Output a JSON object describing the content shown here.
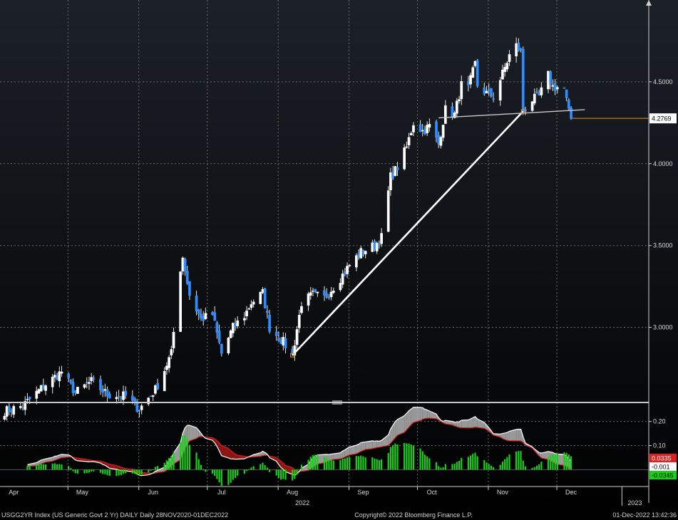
{
  "chart_data": [
    {
      "type": "candlestick",
      "title": "",
      "ylim": [
        2.55,
        5.0
      ],
      "yticks": [
        3.0,
        3.5,
        4.0,
        4.5
      ],
      "ytick_labels": [
        "3.0000",
        "3.5000",
        "4.0000",
        "4.5000"
      ],
      "last_value": 4.2769,
      "last_value_label": "4.2769",
      "x_range": [
        "2022-03-26",
        "2023-01-04"
      ],
      "close_keypoints": [
        [
          "2022-03-26",
          2.48
        ],
        [
          "2022-04-05",
          2.52
        ],
        [
          "2022-04-14",
          2.64
        ],
        [
          "2022-04-22",
          2.73
        ],
        [
          "2022-04-28",
          2.6
        ],
        [
          "2022-05-05",
          2.67
        ],
        [
          "2022-05-12",
          2.59
        ],
        [
          "2022-05-20",
          2.58
        ],
        [
          "2022-05-26",
          2.5
        ],
        [
          "2022-06-02",
          2.62
        ],
        [
          "2022-06-06",
          2.74
        ],
        [
          "2022-06-09",
          2.84
        ],
        [
          "2022-06-13",
          3.36
        ],
        [
          "2022-06-14",
          3.43
        ],
        [
          "2022-06-17",
          3.2
        ],
        [
          "2022-06-22",
          3.05
        ],
        [
          "2022-06-27",
          3.08
        ],
        [
          "2022-07-01",
          2.84
        ],
        [
          "2022-07-06",
          3.0
        ],
        [
          "2022-07-11",
          3.07
        ],
        [
          "2022-07-14",
          3.15
        ],
        [
          "2022-07-19",
          3.21
        ],
        [
          "2022-07-22",
          3.0
        ],
        [
          "2022-07-28",
          2.91
        ],
        [
          "2022-08-01",
          2.83
        ],
        [
          "2022-08-05",
          3.15
        ],
        [
          "2022-08-10",
          3.2
        ],
        [
          "2022-08-15",
          3.18
        ],
        [
          "2022-08-22",
          3.3
        ],
        [
          "2022-08-26",
          3.38
        ],
        [
          "2022-08-31",
          3.46
        ],
        [
          "2022-09-06",
          3.5
        ],
        [
          "2022-09-09",
          3.55
        ],
        [
          "2022-09-13",
          3.92
        ],
        [
          "2022-09-16",
          3.98
        ],
        [
          "2022-09-20",
          4.1
        ],
        [
          "2022-09-23",
          4.25
        ],
        [
          "2022-09-27",
          4.2
        ],
        [
          "2022-09-30",
          4.23
        ],
        [
          "2022-10-04",
          4.12
        ],
        [
          "2022-10-07",
          4.33
        ],
        [
          "2022-10-11",
          4.3
        ],
        [
          "2022-10-14",
          4.48
        ],
        [
          "2022-10-17",
          4.46
        ],
        [
          "2022-10-20",
          4.61
        ],
        [
          "2022-10-21",
          4.48
        ],
        [
          "2022-10-25",
          4.43
        ],
        [
          "2022-10-28",
          4.41
        ],
        [
          "2022-11-01",
          4.55
        ],
        [
          "2022-11-04",
          4.66
        ],
        [
          "2022-11-07",
          4.72
        ],
        [
          "2022-11-09",
          4.68
        ],
        [
          "2022-11-10",
          4.32
        ],
        [
          "2022-11-14",
          4.39
        ],
        [
          "2022-11-17",
          4.41
        ],
        [
          "2022-11-21",
          4.54
        ],
        [
          "2022-11-23",
          4.47
        ],
        [
          "2022-11-28",
          4.46
        ],
        [
          "2022-11-30",
          4.31
        ],
        [
          "2022-12-01",
          4.2769
        ]
      ],
      "trendlines": [
        {
          "from": [
            "2022-08-01",
            2.83
          ],
          "to": [
            "2022-11-10",
            4.32
          ],
          "color": "#ffffff"
        },
        {
          "from": [
            "2022-10-04",
            4.28
          ],
          "to": [
            "2022-12-07",
            4.33
          ],
          "color": "#c8c8c8"
        }
      ],
      "colors": {
        "up": "#ffffff",
        "down": "#2f8dff",
        "last_line": "#f0901e"
      }
    },
    {
      "type": "oscillator",
      "ylim": [
        -0.07,
        0.27
      ],
      "yticks": [
        0.1,
        0.2
      ],
      "ytick_labels": [
        "0.10",
        "0.20"
      ],
      "badges": [
        {
          "label": "0.0335",
          "value": 0.0335,
          "color": "#e02020"
        },
        {
          "label": "-0.001",
          "value": -0.001,
          "color": "#ffffff"
        },
        {
          "label": "-0.0345",
          "value": -0.0345,
          "color": "#19cf19"
        }
      ],
      "colors": {
        "fast_line": "#ffffff",
        "slow_line": "#d42020",
        "fill_up": "#a8a8a8",
        "fill_down": "#a01818",
        "histogram": "#19cf19"
      }
    }
  ],
  "x_axis": {
    "months": [
      {
        "label": "Apr",
        "date": "2022-04-01"
      },
      {
        "label": "May",
        "date": "2022-05-01"
      },
      {
        "label": "Jun",
        "date": "2022-06-01"
      },
      {
        "label": "Jul",
        "date": "2022-07-01"
      },
      {
        "label": "Aug",
        "date": "2022-08-01"
      },
      {
        "label": "Sep",
        "date": "2022-09-01"
      },
      {
        "label": "Oct",
        "date": "2022-10-01"
      },
      {
        "label": "Nov",
        "date": "2022-11-01"
      },
      {
        "label": "Dec",
        "date": "2022-12-01"
      }
    ],
    "years": [
      {
        "label": "2022",
        "date": "2022-08-01"
      },
      {
        "label": "2023",
        "date": "2023-01-01"
      }
    ]
  },
  "footer": {
    "left": "USGG2YR Index (US Generic Govt 2 Yr) DAILY  Daily 28NOV2020-01DEC2022",
    "center": "Copyright© 2022 Bloomberg Finance L.P.",
    "right": "01-Dec-2022 13:42:36"
  },
  "theme": {
    "background_top": "#1c2128",
    "background_bottom": "#000000",
    "grid": "#6a6a6a",
    "axis_text": "#d8d8d8"
  }
}
